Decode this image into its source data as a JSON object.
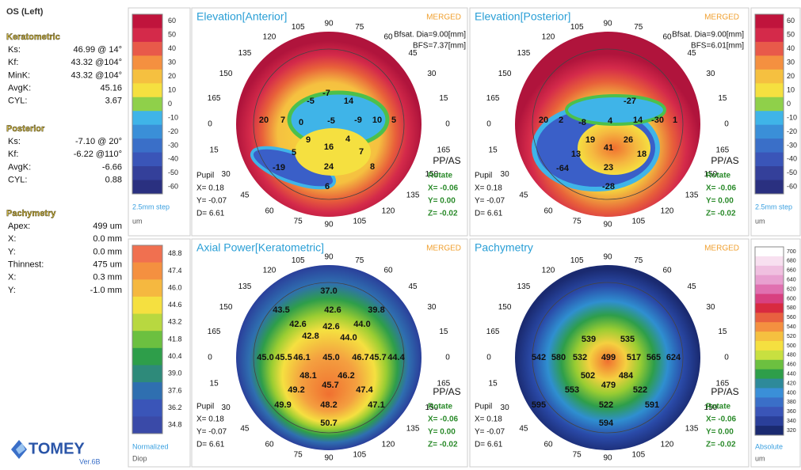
{
  "left_panel": {
    "eye": "OS (Left)",
    "sections": [
      {
        "heading": "Keratometric",
        "rows": [
          [
            "Ks:",
            "46.99 @ 14°"
          ],
          [
            "Kf:",
            "43.32 @104°"
          ],
          [
            "MinK:",
            "43.32 @104°"
          ],
          [
            "AvgK:",
            "45.16"
          ],
          [
            "CYL:",
            "3.67"
          ]
        ]
      },
      {
        "heading": "Posterior",
        "rows": [
          [
            "Ks:",
            "-7.10 @ 20°"
          ],
          [
            "Kf:",
            "-6.22 @110°"
          ],
          [
            "AvgK:",
            "-6.66"
          ],
          [
            "CYL:",
            "0.88"
          ]
        ]
      },
      {
        "heading": "Pachymetry",
        "rows": [
          [
            "Apex:",
            "499 um"
          ],
          [
            "X:",
            "0.0 mm"
          ],
          [
            "Y:",
            "0.0 mm"
          ],
          [
            "Thinnest:",
            "475 um"
          ],
          [
            "X:",
            "0.3 mm"
          ],
          [
            "Y:",
            "-1.0 mm"
          ]
        ]
      }
    ],
    "logo": "TOMEY",
    "version": "Ver.6B"
  },
  "scales": [
    {
      "ticks": [
        "60",
        "50",
        "40",
        "30",
        "20",
        "10",
        "0",
        "-10",
        "-20",
        "-30",
        "-40",
        "-50",
        "-60"
      ],
      "colors": [
        "#c0143c",
        "#d42a4a",
        "#e85a4a",
        "#f49040",
        "#f5c040",
        "#f5e040",
        "#8fd04a",
        "#3fb4e8",
        "#3a8fd8",
        "#3a6fc8",
        "#3a55b8",
        "#34409a",
        "#2a3080"
      ],
      "caption": [
        "2.5mm step",
        "um"
      ]
    },
    {
      "ticks": [
        "60",
        "50",
        "40",
        "30",
        "20",
        "10",
        "0",
        "-10",
        "-20",
        "-30",
        "-40",
        "-50",
        "-60"
      ],
      "colors": [
        "#c0143c",
        "#d42a4a",
        "#e85a4a",
        "#f49040",
        "#f5c040",
        "#f5e040",
        "#8fd04a",
        "#3fb4e8",
        "#3a8fd8",
        "#3a6fc8",
        "#3a55b8",
        "#34409a",
        "#2a3080"
      ],
      "caption": [
        "2.5mm step",
        "um"
      ]
    },
    {
      "ticks": [
        "48.8",
        "47.4",
        "46.0",
        "44.6",
        "43.2",
        "41.8",
        "40.4",
        "39.0",
        "37.6",
        "36.2",
        "34.8"
      ],
      "colors": [
        "#f07050",
        "#f49040",
        "#f5b840",
        "#f5e040",
        "#b8d840",
        "#6cc040",
        "#2e9e4a",
        "#2e8a7a",
        "#2f6fb0",
        "#3a55b8",
        "#3a4aa8"
      ],
      "caption": [
        "Normalized",
        "Diop"
      ]
    },
    {
      "ticks": [
        "700",
        "680",
        "660",
        "640",
        "620",
        "600",
        "580",
        "560",
        "540",
        "520",
        "500",
        "480",
        "460",
        "440",
        "420",
        "400",
        "380",
        "360",
        "340",
        "320"
      ],
      "colors": [
        "#ffffff",
        "#f8e0f0",
        "#f0c0e0",
        "#e8a0d0",
        "#e070b0",
        "#d84080",
        "#d82a40",
        "#e86040",
        "#f49040",
        "#f5c040",
        "#f5e040",
        "#c8e040",
        "#6cc040",
        "#2e9e4a",
        "#2e8a9a",
        "#3a8fd8",
        "#3a6fc8",
        "#3a55b8",
        "#2a3f9a",
        "#1a2a70"
      ],
      "caption": [
        "Absolute",
        "um"
      ]
    }
  ],
  "angle_labels": [
    "0",
    "15",
    "30",
    "45",
    "60",
    "75",
    "90",
    "105",
    "120",
    "135",
    "150",
    "165",
    "0",
    "15",
    "30",
    "45",
    "60",
    "75",
    "90",
    "105",
    "120",
    "135",
    "150",
    "165"
  ],
  "side_labels": {
    "orientation": "PP/AS",
    "rotate": [
      "Rotate",
      "X= -0.06",
      "Y= 0.00",
      "Z= -0.02"
    ]
  },
  "maps": [
    {
      "title": "Elevation[Anterior]",
      "badge": "MERGED",
      "info": [
        "Bfsat. Dia=9.00[mm]",
        "BFS=7.37[mm]"
      ],
      "pupil": [
        "Pupil",
        "X= 0.18",
        "Y= -0.07",
        "D= 6.61"
      ],
      "values": [
        "-7",
        "14",
        "-5",
        "20",
        "7",
        "0",
        "-5",
        "-9",
        "10",
        "5",
        "9",
        "16",
        "4",
        "7",
        "5",
        "-19",
        "24",
        "8",
        "6"
      ]
    },
    {
      "title": "Elevation[Posterior]",
      "badge": "MERGED",
      "info": [
        "Bfsat. Dia=9.00[mm]",
        "BFS=6.01[mm]"
      ],
      "pupil": [
        "Pupil",
        "X= 0.18",
        "Y= -0.07",
        "D= 6.61"
      ],
      "values": [
        "-27",
        "20",
        "2",
        "-8",
        "4",
        "14",
        "-30",
        "1",
        "19",
        "41",
        "26",
        "18",
        "13",
        "-64",
        "23",
        "-28"
      ]
    },
    {
      "title": "Axial Power[Keratometric]",
      "badge": "MERGED",
      "pupil": [
        "Pupil",
        "X= 0.18",
        "Y= -0.07",
        "D= 6.61"
      ],
      "values": [
        "37.0",
        "43.5",
        "42.6",
        "39.8",
        "42.6",
        "42.6",
        "44.0",
        "42.8",
        "44.0",
        "45.0",
        "45.5",
        "46.1",
        "45.0",
        "46.7",
        "45.7",
        "44.4",
        "48.1",
        "46.2",
        "45.7",
        "49.2",
        "47.4",
        "49.9",
        "48.2",
        "47.1",
        "50.7"
      ]
    },
    {
      "title": "Pachymetry",
      "badge": "MERGED",
      "pupil": [
        "Pupil",
        "X= 0.18",
        "Y= -0.07",
        "D= 6.61"
      ],
      "values": [
        "539",
        "535",
        "542",
        "580",
        "532",
        "499",
        "517",
        "565",
        "624",
        "502",
        "484",
        "479",
        "553",
        "522",
        "595",
        "522",
        "591",
        "594"
      ]
    }
  ]
}
